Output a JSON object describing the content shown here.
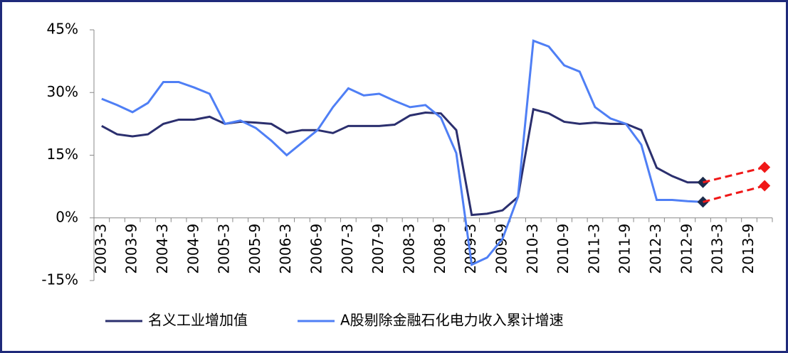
{
  "chart_data": {
    "type": "line",
    "categories": [
      "2003-3",
      null,
      "2003-9",
      null,
      "2004-3",
      null,
      "2004-9",
      null,
      "2005-3",
      null,
      "2005-9",
      null,
      "2006-3",
      null,
      "2006-9",
      null,
      "2007-3",
      null,
      "2007-9",
      null,
      "2008-3",
      null,
      "2008-9",
      null,
      "2009-3",
      null,
      "2009-9",
      null,
      "2010-3",
      null,
      "2010-9",
      null,
      "2011-3",
      null,
      "2011-9",
      null,
      "2012-3",
      null,
      "2012-9",
      null,
      "2013-3",
      null,
      "2013-9",
      null
    ],
    "series": [
      {
        "name": "名义工业增加值",
        "color": "#2b2f6e",
        "end_marker_color": "#1c2a4a",
        "values": [
          22,
          20,
          19.5,
          20,
          22.5,
          23.5,
          23.5,
          24.2,
          22.5,
          23,
          22.8,
          22.5,
          20.3,
          21,
          21,
          20.3,
          22,
          22,
          22,
          22.3,
          24.5,
          25.2,
          25,
          21,
          0.7,
          1,
          1.8,
          5,
          26,
          25,
          23,
          22.5,
          22.8,
          22.5,
          22.5,
          21,
          12,
          10,
          8.5,
          8.5,
          null,
          null,
          null,
          null
        ]
      },
      {
        "name": "A股剔除金融石化电力收入累计增速",
        "color": "#4f7ff5",
        "end_marker_color": "#1c2a4a",
        "values": [
          28.5,
          27,
          25.3,
          27.5,
          32.5,
          32.5,
          31.2,
          29.7,
          22.5,
          23.3,
          21.5,
          18.5,
          15,
          18,
          21,
          26.5,
          31,
          29.3,
          29.7,
          28,
          26.5,
          27,
          24,
          15.5,
          -11.2,
          -9.5,
          -5,
          5,
          42.4,
          41,
          36.5,
          35,
          26.5,
          23.8,
          22.5,
          17.5,
          4.3,
          4.3,
          4,
          3.8,
          null,
          null,
          null,
          null
        ]
      },
      {
        "color": "#f01818",
        "dashed": true,
        "end_marker_color": "#f01818",
        "values": [
          null,
          null,
          null,
          null,
          null,
          null,
          null,
          null,
          null,
          null,
          null,
          null,
          null,
          null,
          null,
          null,
          null,
          null,
          null,
          null,
          null,
          null,
          null,
          null,
          null,
          null,
          null,
          null,
          null,
          null,
          null,
          null,
          null,
          null,
          null,
          null,
          null,
          null,
          null,
          8.5,
          9.4,
          10.3,
          11.2,
          12.1
        ]
      },
      {
        "color": "#f01818",
        "dashed": true,
        "end_marker_color": "#f01818",
        "values": [
          null,
          null,
          null,
          null,
          null,
          null,
          null,
          null,
          null,
          null,
          null,
          null,
          null,
          null,
          null,
          null,
          null,
          null,
          null,
          null,
          null,
          null,
          null,
          null,
          null,
          null,
          null,
          null,
          null,
          null,
          null,
          null,
          null,
          null,
          null,
          null,
          null,
          null,
          null,
          3.8,
          4.8,
          5.8,
          6.7,
          7.7
        ]
      }
    ],
    "ylim": [
      -15,
      45
    ],
    "yticks": [
      {
        "value": -15,
        "label": "-15%"
      },
      {
        "value": 0,
        "label": "0%"
      },
      {
        "value": 15,
        "label": "15%"
      },
      {
        "value": 30,
        "label": "30%"
      },
      {
        "value": 45,
        "label": "45%"
      }
    ],
    "grid": false
  }
}
